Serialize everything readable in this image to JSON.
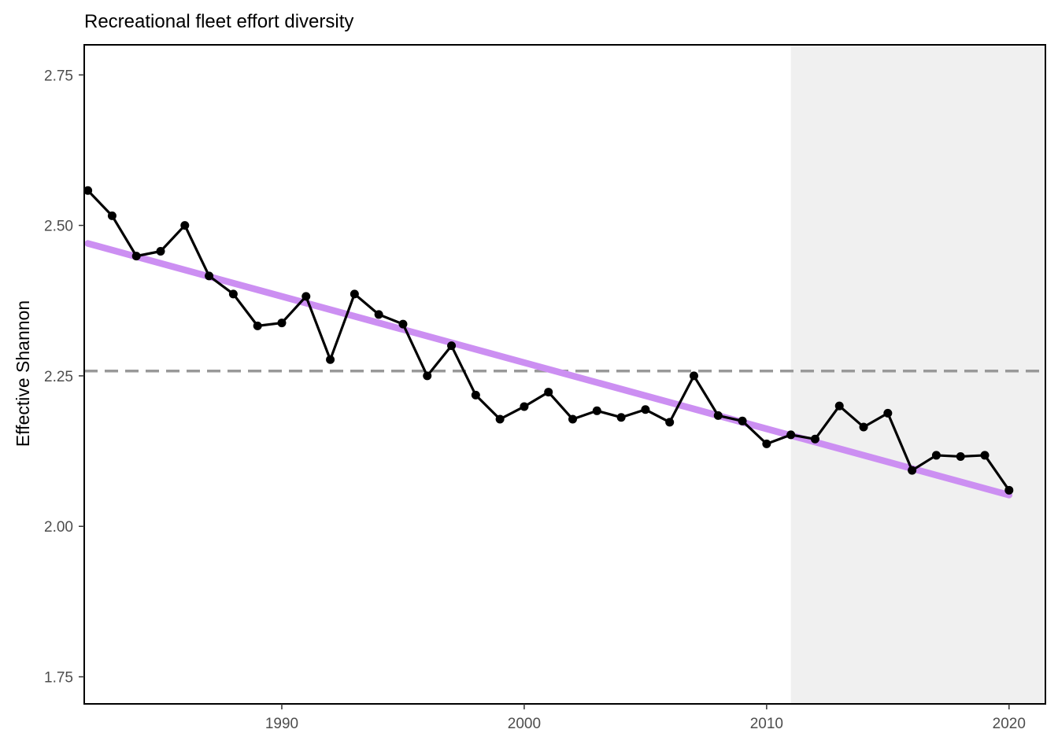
{
  "chart_data": {
    "type": "line",
    "title": "Recreational fleet effort diversity",
    "xlabel": "",
    "ylabel": "Effective Shannon",
    "xlim": [
      1981.85,
      2021.5
    ],
    "ylim": [
      1.705,
      2.8
    ],
    "x_ticks": [
      1990,
      2000,
      2010,
      2020
    ],
    "y_ticks": [
      1.75,
      2.0,
      2.25,
      2.5,
      2.75
    ],
    "y_tick_labels": [
      "1.75",
      "2.00",
      "2.25",
      "2.50",
      "2.75"
    ],
    "grid": false,
    "legend": "none",
    "shaded_region": {
      "x_start": 2011,
      "x_end": 2021.5,
      "color": "#f0f0f0"
    },
    "reference_line": {
      "y": 2.258,
      "style": "dashed",
      "color": "#999999"
    },
    "trend_line": {
      "x": [
        1982,
        2020
      ],
      "y": [
        2.47,
        2.052
      ],
      "color": "#cc8ff2"
    },
    "series": [
      {
        "color": "#000000",
        "x": [
          1982,
          1983,
          1984,
          1985,
          1986,
          1987,
          1988,
          1989,
          1990,
          1991,
          1992,
          1993,
          1994,
          1995,
          1996,
          1997,
          1998,
          1999,
          2000,
          2001,
          2002,
          2003,
          2004,
          2005,
          2006,
          2007,
          2008,
          2009,
          2010,
          2011,
          2012,
          2013,
          2014,
          2015,
          2016,
          2017,
          2018,
          2019,
          2020
        ],
        "values": [
          2.558,
          2.516,
          2.449,
          2.457,
          2.5,
          2.416,
          2.386,
          2.333,
          2.338,
          2.382,
          2.277,
          2.386,
          2.352,
          2.336,
          2.25,
          2.3,
          2.218,
          2.178,
          2.199,
          2.223,
          2.178,
          2.192,
          2.181,
          2.194,
          2.173,
          2.25,
          2.184,
          2.175,
          2.137,
          2.152,
          2.145,
          2.2,
          2.165,
          2.188,
          2.093,
          2.118,
          2.116,
          2.118,
          2.06
        ]
      }
    ]
  }
}
